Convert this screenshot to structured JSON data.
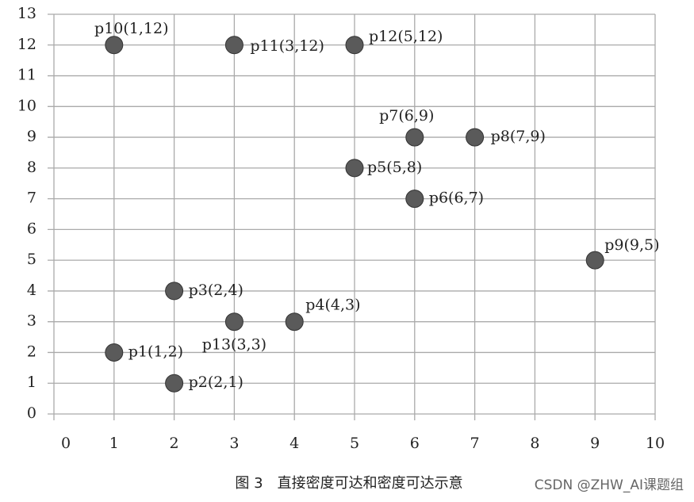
{
  "chart_data": {
    "type": "scatter",
    "caption": "图 3　直接密度可达和密度可达示意",
    "watermark": "CSDN @ZHW_AI课题组",
    "x": [
      1,
      2,
      2,
      4,
      5,
      6,
      6,
      7,
      9,
      1,
      3,
      5,
      3
    ],
    "series": [
      {
        "color": "#5a5a5a",
        "values": [
          2,
          1,
          4,
          3,
          8,
          7,
          9,
          9,
          5,
          12,
          12,
          12,
          3
        ],
        "point_labels": [
          "p1(1,2)",
          "p2(2,1)",
          "p3(2,4)",
          "p4(4,3)",
          "p5(5,8)",
          "p6(6,7)",
          "p7(6,9)",
          "p8(7,9)",
          "p9(9,5)",
          "p10(1,12)",
          "p11(3,12)",
          "p12(5,12)",
          "p13(3,3)"
        ]
      }
    ],
    "xlim": [
      0,
      10
    ],
    "xticks": [
      0,
      1,
      2,
      3,
      4,
      5,
      6,
      7,
      8,
      9,
      10
    ],
    "ylim": [
      0,
      13
    ],
    "yticks": [
      0,
      1,
      2,
      3,
      4,
      5,
      6,
      7,
      8,
      9,
      10,
      11,
      12,
      13
    ],
    "grid": true
  }
}
